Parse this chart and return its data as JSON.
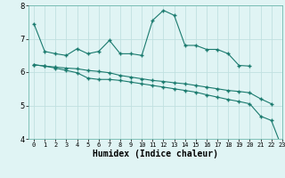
{
  "x": [
    0,
    1,
    2,
    3,
    4,
    5,
    6,
    7,
    8,
    9,
    10,
    11,
    12,
    13,
    14,
    15,
    16,
    17,
    18,
    19,
    20,
    21,
    22,
    23
  ],
  "line1": [
    7.45,
    6.62,
    6.55,
    6.5,
    6.7,
    6.55,
    6.62,
    6.95,
    6.55,
    6.55,
    6.5,
    7.55,
    7.85,
    7.7,
    6.8,
    6.8,
    6.68,
    6.68,
    6.55,
    6.2,
    6.18,
    null,
    null,
    null
  ],
  "line2": [
    6.22,
    6.18,
    6.15,
    6.12,
    6.1,
    6.05,
    6.02,
    5.98,
    5.9,
    5.85,
    5.8,
    5.75,
    5.72,
    5.68,
    5.65,
    5.6,
    5.55,
    5.5,
    5.45,
    5.42,
    5.38,
    5.2,
    5.05,
    null
  ],
  "line3": [
    6.22,
    6.18,
    6.12,
    6.05,
    5.98,
    5.82,
    5.78,
    5.78,
    5.75,
    5.7,
    5.65,
    5.6,
    5.55,
    5.5,
    5.45,
    5.4,
    5.32,
    5.25,
    5.18,
    5.12,
    5.05,
    4.68,
    4.55,
    3.72
  ],
  "line_color": "#1a7a6e",
  "bg_color": "#e0f4f4",
  "grid_color": "#c0e0e0",
  "xlabel": "Humidex (Indice chaleur)",
  "ylim": [
    4,
    8
  ],
  "xlim": [
    -0.5,
    23
  ],
  "yticks": [
    4,
    5,
    6,
    7,
    8
  ],
  "xticks": [
    0,
    1,
    2,
    3,
    4,
    5,
    6,
    7,
    8,
    9,
    10,
    11,
    12,
    13,
    14,
    15,
    16,
    17,
    18,
    19,
    20,
    21,
    22,
    23
  ]
}
